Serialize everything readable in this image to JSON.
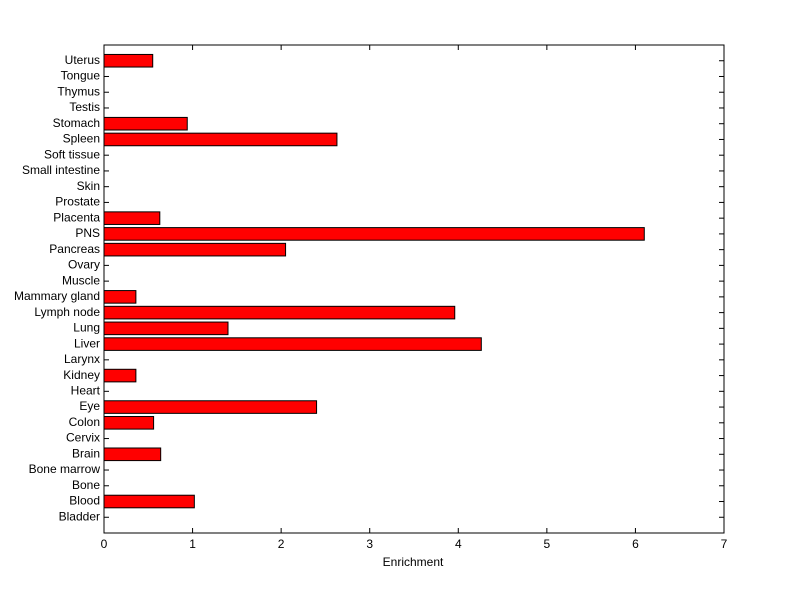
{
  "chart_data": {
    "type": "barh",
    "x_label": "Enrichment",
    "categories": [
      "Bladder",
      "Blood",
      "Bone",
      "Bone marrow",
      "Brain",
      "Cervix",
      "Colon",
      "Eye",
      "Heart",
      "Kidney",
      "Larynx",
      "Liver",
      "Lung",
      "Lymph node",
      "Mammary gland",
      "Muscle",
      "Ovary",
      "Pancreas",
      "PNS",
      "Placenta",
      "Prostate",
      "Skin",
      "Small intestine",
      "Soft tissue",
      "Spleen",
      "Stomach",
      "Testis",
      "Thymus",
      "Tongue",
      "Uterus"
    ],
    "values": [
      0,
      1.02,
      0,
      0,
      0.64,
      0,
      0.56,
      2.4,
      0,
      0.36,
      0,
      4.26,
      1.4,
      3.96,
      0.36,
      0,
      0,
      2.05,
      6.1,
      0.63,
      0,
      0,
      0,
      0,
      2.63,
      0.94,
      0,
      0,
      0,
      0.55
    ],
    "color": "#ff0000",
    "xlim": [
      0,
      7
    ],
    "xticks": [
      0,
      1,
      2,
      3,
      4,
      5,
      6,
      7
    ]
  }
}
